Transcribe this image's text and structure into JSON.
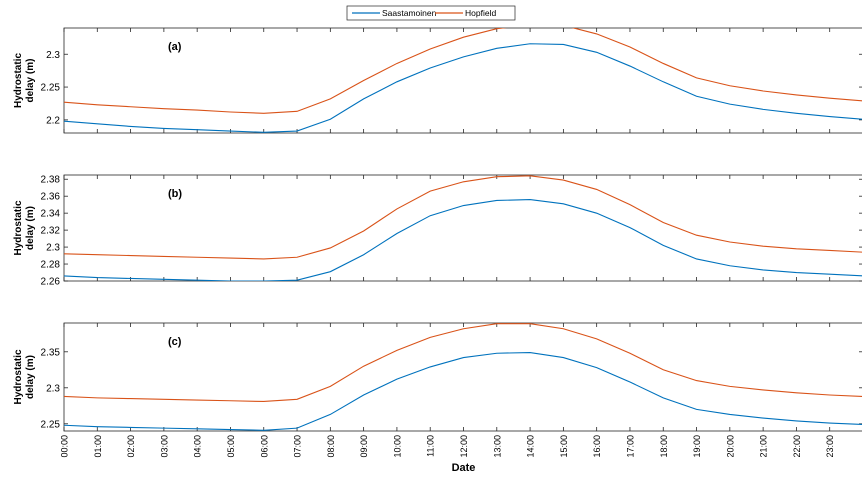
{
  "legend": {
    "placement": "top-center",
    "items": [
      {
        "label": "Saastamoinen",
        "color": "#0072BD"
      },
      {
        "label": "Hopfield",
        "color": "#D95319"
      }
    ]
  },
  "xlabel": "Date",
  "x_ticks": [
    "00:00",
    "01:00",
    "02:00",
    "03:00",
    "04:00",
    "05:00",
    "06:00",
    "07:00",
    "08:00",
    "09:00",
    "10:00",
    "11:00",
    "12:00",
    "13:00",
    "14:00",
    "15:00",
    "16:00",
    "17:00",
    "18:00",
    "19:00",
    "20:00",
    "21:00",
    "22:00",
    "23:00"
  ],
  "chart_data": [
    {
      "type": "line",
      "panel_label": "(a)",
      "ylabel": "Hydrostatic delay (m)",
      "ylabel_lines": [
        "Hydrostatic",
        "delay (m)"
      ],
      "xlim": [
        0,
        24
      ],
      "ylim": [
        2.18,
        2.34
      ],
      "yticks": [
        2.2,
        2.25,
        2.3
      ],
      "ytick_labels": [
        "2.2",
        "2.25",
        "2.3"
      ],
      "x": [
        0,
        1,
        2,
        3,
        4,
        5,
        6,
        7,
        8,
        9,
        10,
        11,
        12,
        13,
        14,
        15,
        16,
        17,
        18,
        19,
        20,
        21,
        22,
        23,
        24
      ],
      "series": [
        {
          "name": "Saastamoinen",
          "color": "#0072BD",
          "values": [
            2.198,
            2.194,
            2.19,
            2.187,
            2.185,
            2.183,
            2.181,
            2.183,
            2.201,
            2.232,
            2.258,
            2.279,
            2.296,
            2.309,
            2.316,
            2.315,
            2.303,
            2.282,
            2.258,
            2.236,
            2.224,
            2.216,
            2.21,
            2.205,
            2.201
          ]
        },
        {
          "name": "Hopfield",
          "color": "#D95319",
          "values": [
            2.227,
            2.223,
            2.22,
            2.217,
            2.215,
            2.212,
            2.21,
            2.213,
            2.232,
            2.26,
            2.286,
            2.308,
            2.326,
            2.339,
            2.345,
            2.344,
            2.331,
            2.311,
            2.286,
            2.264,
            2.252,
            2.244,
            2.238,
            2.233,
            2.229
          ]
        }
      ]
    },
    {
      "type": "line",
      "panel_label": "(b)",
      "ylabel": "Hydrostatic delay (m)",
      "ylabel_lines": [
        "Hydrostatic",
        "delay (m)"
      ],
      "xlim": [
        0,
        24
      ],
      "ylim": [
        2.26,
        2.385
      ],
      "yticks": [
        2.26,
        2.28,
        2.3,
        2.32,
        2.34,
        2.36,
        2.38
      ],
      "ytick_labels": [
        "2.26",
        "2.28",
        "2.3",
        "2.32",
        "2.34",
        "2.36",
        "2.38"
      ],
      "x": [
        0,
        1,
        2,
        3,
        4,
        5,
        6,
        7,
        8,
        9,
        10,
        11,
        12,
        13,
        14,
        15,
        16,
        17,
        18,
        19,
        20,
        21,
        22,
        23,
        24
      ],
      "series": [
        {
          "name": "Saastamoinen",
          "color": "#0072BD",
          "values": [
            2.266,
            2.264,
            2.263,
            2.262,
            2.261,
            2.26,
            2.26,
            2.261,
            2.271,
            2.291,
            2.316,
            2.337,
            2.349,
            2.355,
            2.356,
            2.351,
            2.34,
            2.323,
            2.302,
            2.286,
            2.278,
            2.273,
            2.27,
            2.268,
            2.266
          ]
        },
        {
          "name": "Hopfield",
          "color": "#D95319",
          "values": [
            2.292,
            2.291,
            2.29,
            2.289,
            2.288,
            2.287,
            2.286,
            2.288,
            2.299,
            2.319,
            2.345,
            2.366,
            2.377,
            2.383,
            2.384,
            2.379,
            2.368,
            2.35,
            2.329,
            2.314,
            2.306,
            2.301,
            2.298,
            2.296,
            2.294
          ]
        }
      ]
    },
    {
      "type": "line",
      "panel_label": "(c)",
      "ylabel": "Hydrostatic delay (m)",
      "ylabel_lines": [
        "Hydrostatic",
        "delay (m)"
      ],
      "xlim": [
        0,
        24
      ],
      "ylim": [
        2.24,
        2.39
      ],
      "yticks": [
        2.25,
        2.3,
        2.35
      ],
      "ytick_labels": [
        "2.25",
        "2.3",
        "2.35"
      ],
      "x": [
        0,
        1,
        2,
        3,
        4,
        5,
        6,
        7,
        8,
        9,
        10,
        11,
        12,
        13,
        14,
        15,
        16,
        17,
        18,
        19,
        20,
        21,
        22,
        23,
        24
      ],
      "series": [
        {
          "name": "Saastamoinen",
          "color": "#0072BD",
          "values": [
            2.248,
            2.246,
            2.245,
            2.244,
            2.243,
            2.242,
            2.241,
            2.244,
            2.263,
            2.29,
            2.312,
            2.329,
            2.342,
            2.348,
            2.349,
            2.342,
            2.328,
            2.308,
            2.286,
            2.27,
            2.263,
            2.258,
            2.254,
            2.251,
            2.249
          ]
        },
        {
          "name": "Hopfield",
          "color": "#D95319",
          "values": [
            2.288,
            2.286,
            2.285,
            2.284,
            2.283,
            2.282,
            2.281,
            2.284,
            2.302,
            2.33,
            2.352,
            2.37,
            2.382,
            2.389,
            2.389,
            2.382,
            2.368,
            2.348,
            2.325,
            2.31,
            2.302,
            2.297,
            2.293,
            2.29,
            2.288
          ]
        }
      ]
    }
  ]
}
